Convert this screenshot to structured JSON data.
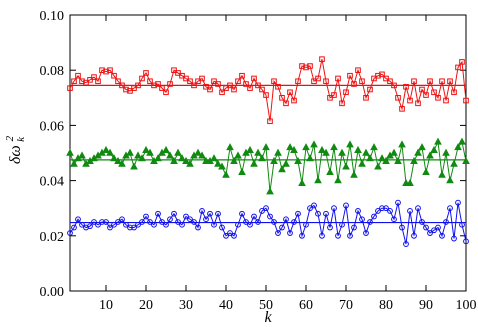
{
  "chart_data": {
    "type": "line",
    "xlabel": "k",
    "ylabel": "δω_k^2",
    "xlim": [
      1,
      100
    ],
    "ylim": [
      0.0,
      0.1
    ],
    "x_ticks": [
      10,
      20,
      30,
      40,
      50,
      60,
      70,
      80,
      90,
      100
    ],
    "y_ticks": [
      0.0,
      0.02,
      0.04,
      0.06,
      0.08,
      0.1
    ],
    "x_tick_labels": [
      "10",
      "20",
      "30",
      "40",
      "50",
      "60",
      "70",
      "80",
      "90",
      "100"
    ],
    "y_tick_labels": [
      "0.00",
      "0.02",
      "0.04",
      "0.06",
      "0.08",
      "0.10"
    ],
    "grid": false,
    "x": [
      1,
      2,
      3,
      4,
      5,
      6,
      7,
      8,
      9,
      10,
      11,
      12,
      13,
      14,
      15,
      16,
      17,
      18,
      19,
      20,
      21,
      22,
      23,
      24,
      25,
      26,
      27,
      28,
      29,
      30,
      31,
      32,
      33,
      34,
      35,
      36,
      37,
      38,
      39,
      40,
      41,
      42,
      43,
      44,
      45,
      46,
      47,
      48,
      49,
      50,
      51,
      52,
      53,
      54,
      55,
      56,
      57,
      58,
      59,
      60,
      61,
      62,
      63,
      64,
      65,
      66,
      67,
      68,
      69,
      70,
      71,
      72,
      73,
      74,
      75,
      76,
      77,
      78,
      79,
      80,
      81,
      82,
      83,
      84,
      85,
      86,
      87,
      88,
      89,
      90,
      91,
      92,
      93,
      94,
      95,
      96,
      97,
      98,
      99,
      100
    ],
    "series": [
      {
        "color": "#ee1111",
        "marker": "square",
        "mean": 0.0745,
        "values": [
          0.0735,
          0.076,
          0.078,
          0.076,
          0.0755,
          0.0765,
          0.0775,
          0.076,
          0.08,
          0.0795,
          0.08,
          0.078,
          0.076,
          0.0745,
          0.073,
          0.0725,
          0.0735,
          0.0745,
          0.077,
          0.079,
          0.076,
          0.0745,
          0.075,
          0.0735,
          0.072,
          0.075,
          0.08,
          0.079,
          0.078,
          0.077,
          0.076,
          0.0745,
          0.076,
          0.077,
          0.074,
          0.073,
          0.076,
          0.075,
          0.072,
          0.0735,
          0.0745,
          0.073,
          0.076,
          0.078,
          0.075,
          0.0735,
          0.077,
          0.0745,
          0.073,
          0.071,
          0.0615,
          0.076,
          0.074,
          0.07,
          0.068,
          0.072,
          0.069,
          0.076,
          0.0815,
          0.081,
          0.0815,
          0.076,
          0.077,
          0.084,
          0.076,
          0.07,
          0.071,
          0.077,
          0.068,
          0.072,
          0.078,
          0.075,
          0.08,
          0.076,
          0.07,
          0.073,
          0.077,
          0.078,
          0.0785,
          0.077,
          0.076,
          0.0745,
          0.07,
          0.066,
          0.074,
          0.069,
          0.076,
          0.068,
          0.073,
          0.071,
          0.076,
          0.072,
          0.07,
          0.076,
          0.069,
          0.076,
          0.072,
          0.081,
          0.083,
          0.069
        ]
      },
      {
        "color": "#108a10",
        "marker": "triangle",
        "mean": 0.0475,
        "values": [
          0.05,
          0.046,
          0.048,
          0.049,
          0.046,
          0.047,
          0.048,
          0.049,
          0.05,
          0.051,
          0.05,
          0.048,
          0.047,
          0.046,
          0.049,
          0.05,
          0.045,
          0.049,
          0.048,
          0.051,
          0.05,
          0.047,
          0.048,
          0.05,
          0.051,
          0.049,
          0.047,
          0.05,
          0.048,
          0.047,
          0.046,
          0.049,
          0.05,
          0.049,
          0.047,
          0.047,
          0.048,
          0.046,
          0.045,
          0.042,
          0.052,
          0.047,
          0.049,
          0.043,
          0.05,
          0.051,
          0.046,
          0.05,
          0.048,
          0.052,
          0.036,
          0.047,
          0.05,
          0.044,
          0.046,
          0.052,
          0.051,
          0.047,
          0.039,
          0.052,
          0.048,
          0.053,
          0.04,
          0.051,
          0.05,
          0.043,
          0.052,
          0.04,
          0.05,
          0.045,
          0.053,
          0.042,
          0.051,
          0.046,
          0.05,
          0.048,
          0.052,
          0.045,
          0.048,
          0.047,
          0.049,
          0.05,
          0.047,
          0.053,
          0.039,
          0.039,
          0.047,
          0.05,
          0.052,
          0.043,
          0.049,
          0.051,
          0.054,
          0.042,
          0.05,
          0.04,
          0.046,
          0.052,
          0.054,
          0.047
        ]
      },
      {
        "color": "#1010ee",
        "marker": "circle",
        "mean": 0.0248,
        "values": [
          0.021,
          0.023,
          0.026,
          0.024,
          0.023,
          0.0235,
          0.025,
          0.024,
          0.025,
          0.025,
          0.023,
          0.024,
          0.025,
          0.026,
          0.024,
          0.023,
          0.023,
          0.024,
          0.025,
          0.027,
          0.025,
          0.024,
          0.028,
          0.025,
          0.024,
          0.026,
          0.028,
          0.025,
          0.024,
          0.027,
          0.026,
          0.025,
          0.023,
          0.029,
          0.026,
          0.028,
          0.024,
          0.028,
          0.023,
          0.02,
          0.021,
          0.02,
          0.024,
          0.028,
          0.025,
          0.024,
          0.027,
          0.025,
          0.029,
          0.03,
          0.027,
          0.025,
          0.021,
          0.023,
          0.026,
          0.021,
          0.025,
          0.028,
          0.02,
          0.024,
          0.03,
          0.031,
          0.028,
          0.02,
          0.028,
          0.023,
          0.03,
          0.02,
          0.024,
          0.031,
          0.02,
          0.023,
          0.029,
          0.026,
          0.021,
          0.025,
          0.027,
          0.029,
          0.03,
          0.03,
          0.029,
          0.026,
          0.032,
          0.023,
          0.017,
          0.029,
          0.02,
          0.03,
          0.025,
          0.023,
          0.021,
          0.022,
          0.023,
          0.02,
          0.025,
          0.03,
          0.019,
          0.032,
          0.024,
          0.018
        ]
      }
    ]
  }
}
